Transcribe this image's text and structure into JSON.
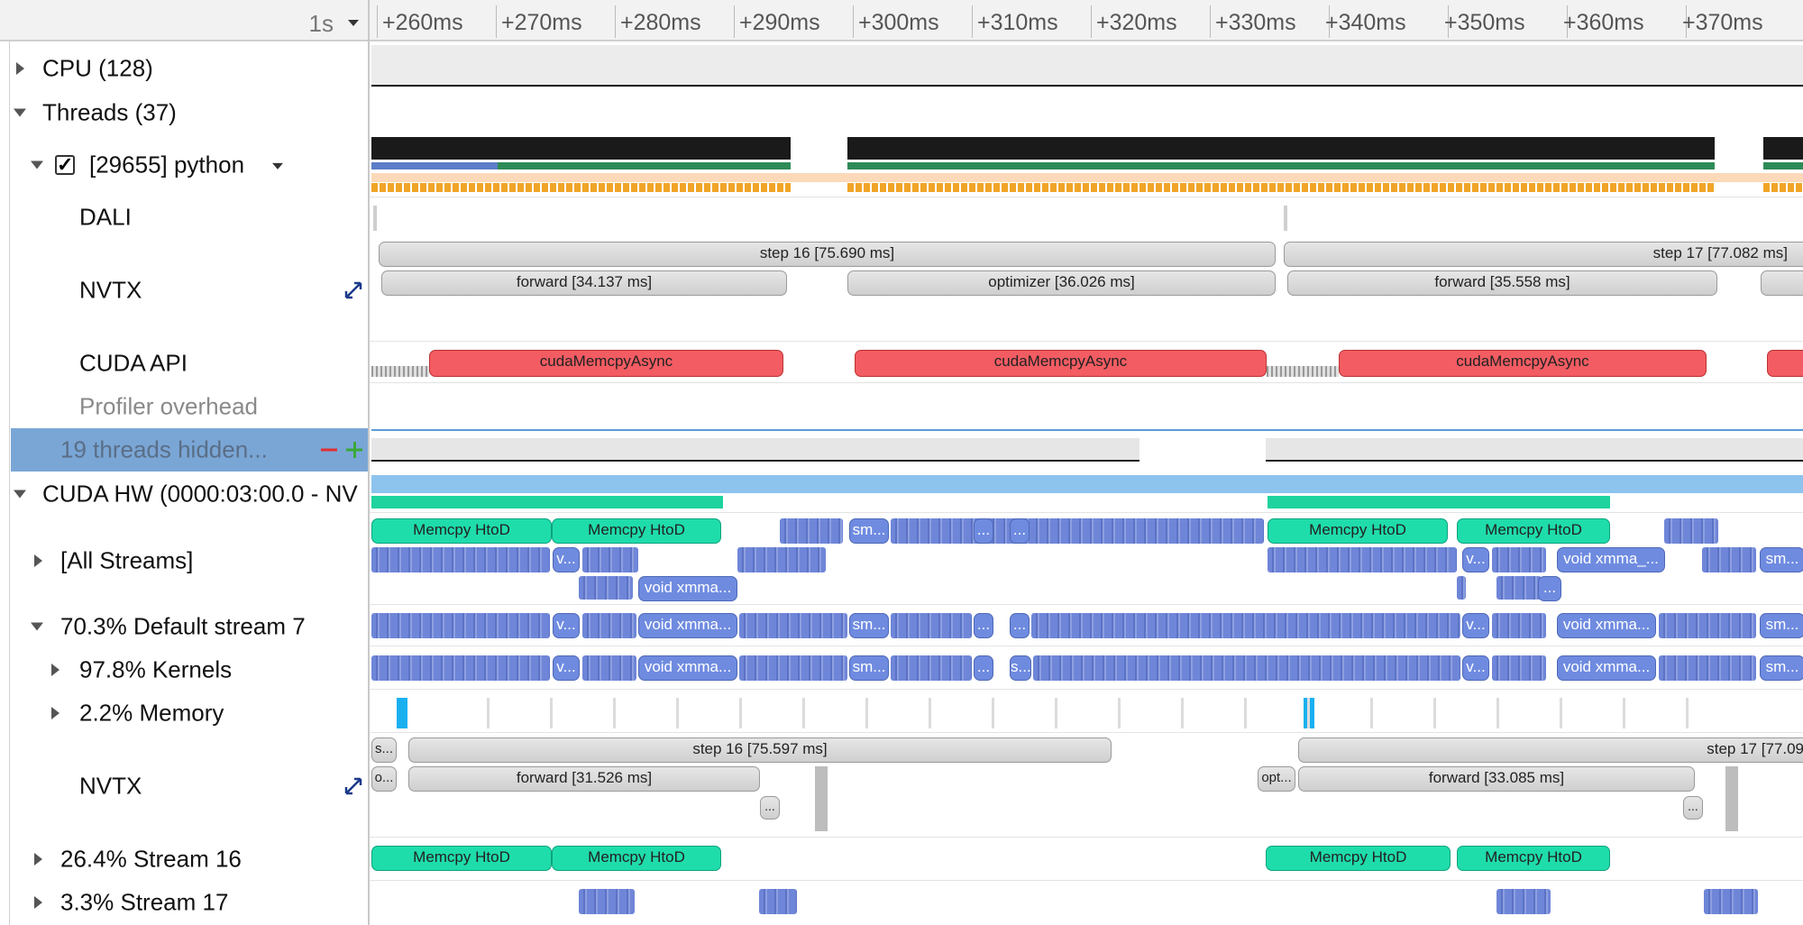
{
  "ruler": {
    "scale": "1s",
    "ticks": [
      "+260ms",
      "+270ms",
      "+280ms",
      "+290ms",
      "+300ms",
      "+310ms",
      "+320ms",
      "+330ms",
      "+340ms",
      "+350ms",
      "+360ms",
      "+370ms"
    ]
  },
  "tree": {
    "cpu": "CPU (128)",
    "threads": "Threads (37)",
    "process": "[29655] python",
    "process_checked": "✓",
    "dali": "DALI",
    "nvtx": "NVTX",
    "cuda_api": "CUDA API",
    "profiler_overhead": "Profiler overhead",
    "threads_hidden": "19 threads hidden...",
    "cuda_hw": "CUDA HW (0000:03:00.0 - NV",
    "all_streams": "[All Streams]",
    "default_stream": "70.3% Default stream 7",
    "kernels": "97.8% Kernels",
    "memory": "2.2% Memory",
    "nvtx2": "NVTX",
    "stream16": "26.4% Stream 16",
    "stream17": "3.3% Stream 17"
  },
  "timeline": {
    "nvtx_thread": {
      "step16": "step 16 [75.690 ms]",
      "step17": "step 17 [77.082 ms]",
      "forward1": "forward [34.137 ms]",
      "optimizer": "optimizer [36.026 ms]",
      "forward2": "forward [35.558 ms]"
    },
    "cuda_api": {
      "call": "cudaMemcpyAsync"
    },
    "all_streams": {
      "memcpy": "Memcpy HtoD",
      "sm": "sm...",
      "dots": "...",
      "v": "v...",
      "void_xmma": "void xmma...",
      "void_xmma_": "void xmma_..."
    },
    "kernels": {
      "s": "s..."
    },
    "nvtx_gpu": {
      "s": "s...",
      "o": "o...",
      "step16": "step 16 [75.597 ms]",
      "step17": "step 17 [77.09",
      "forward1": "forward [31.526 ms]",
      "opt": "opt...",
      "forward2": "forward [33.085 ms]"
    }
  },
  "colors": {
    "memcpy": "#1fdcab",
    "kernel": "#6f86d8",
    "cuda_api": "#f25c62",
    "nvtx": "#d9d9d9",
    "selected_row": "#7aa6d6"
  }
}
